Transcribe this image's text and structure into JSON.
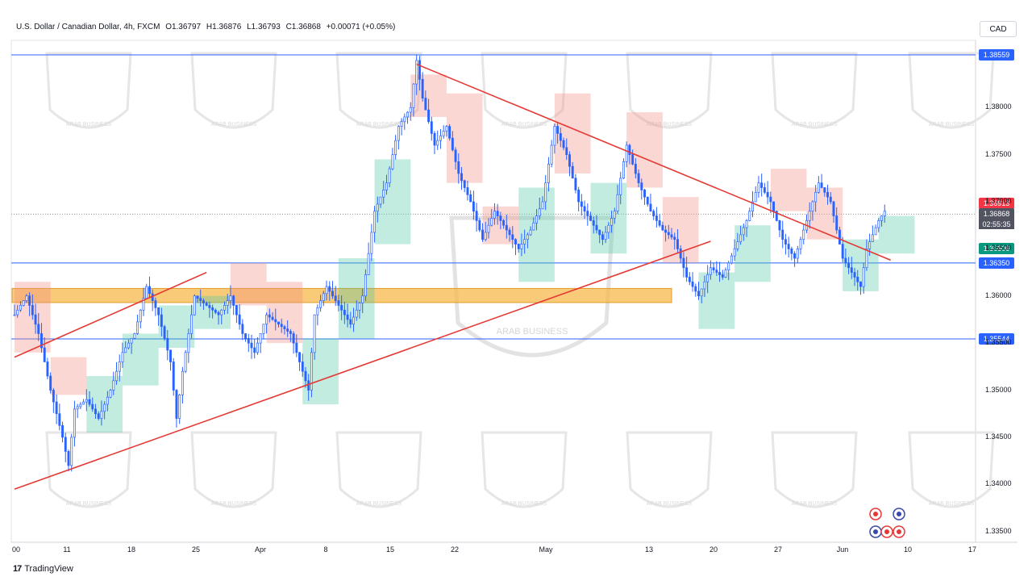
{
  "header": {
    "symbol": "U.S. Dollar / Canadian Dollar, 4h, FXCM",
    "open": "O1.36797",
    "high": "H1.36876",
    "low": "L1.36793",
    "close": "C1.36868",
    "change": "+0.00071 (+0.05%)"
  },
  "currency_button": "CAD",
  "brand": {
    "logo": "TradingView",
    "watermark": "ARAB BUSINESS"
  },
  "price_labels": {
    "resistance_top": "1.38559",
    "red_level": "1.36913",
    "current": "1.36868",
    "countdown": "02:55:35",
    "green_level": "1.36506",
    "support_mid": "1.36350",
    "support_low": "1.35544"
  },
  "colors": {
    "up": "#26a69a",
    "down": "#2962ff",
    "candle": "#2962ff",
    "trendline": "#e53935",
    "hline": "#2962ff",
    "zone": "#f7b84b",
    "cloud_red": "#f28b82",
    "cloud_green": "#4cc9a4"
  },
  "chart_data": {
    "type": "candlestick",
    "title": "U.S. Dollar / Canadian Dollar, 4h, FXCM",
    "xlabel": "",
    "ylabel": "",
    "y_ticks": [
      "1.38000",
      "1.37500",
      "1.37000",
      "1.36500",
      "1.36000",
      "1.35500",
      "1.35000",
      "1.34500",
      "1.34000",
      "1.33500"
    ],
    "x_ticks": [
      "00",
      "11",
      "18",
      "25",
      "Apr",
      "8",
      "15",
      "22",
      "May",
      "13",
      "20",
      "27",
      "Jun",
      "10",
      "17"
    ],
    "ylim": [
      1.3335,
      1.388
    ],
    "horizontal_levels": [
      1.38559,
      1.3635,
      1.35544
    ],
    "zone": {
      "from": 1.3593,
      "to": 1.3608
    },
    "price_path": [
      [
        0,
        1.358
      ],
      [
        2,
        1.36
      ],
      [
        4,
        1.356
      ],
      [
        6,
        1.35
      ],
      [
        8,
        1.345
      ],
      [
        9,
        1.342
      ],
      [
        10,
        1.348
      ],
      [
        12,
        1.349
      ],
      [
        14,
        1.347
      ],
      [
        16,
        1.35
      ],
      [
        18,
        1.354
      ],
      [
        20,
        1.356
      ],
      [
        22,
        1.361
      ],
      [
        24,
        1.358
      ],
      [
        26,
        1.353
      ],
      [
        27,
        1.347
      ],
      [
        28,
        1.352
      ],
      [
        30,
        1.36
      ],
      [
        32,
        1.359
      ],
      [
        34,
        1.358
      ],
      [
        36,
        1.36
      ],
      [
        38,
        1.356
      ],
      [
        40,
        1.354
      ],
      [
        42,
        1.358
      ],
      [
        44,
        1.357
      ],
      [
        46,
        1.356
      ],
      [
        48,
        1.352
      ],
      [
        49,
        1.35
      ],
      [
        50,
        1.358
      ],
      [
        52,
        1.361
      ],
      [
        54,
        1.359
      ],
      [
        56,
        1.357
      ],
      [
        58,
        1.36
      ],
      [
        60,
        1.369
      ],
      [
        62,
        1.372
      ],
      [
        64,
        1.378
      ],
      [
        66,
        1.38
      ],
      [
        67,
        1.385
      ],
      [
        68,
        1.381
      ],
      [
        70,
        1.376
      ],
      [
        72,
        1.378
      ],
      [
        74,
        1.373
      ],
      [
        76,
        1.37
      ],
      [
        78,
        1.366
      ],
      [
        80,
        1.369
      ],
      [
        82,
        1.367
      ],
      [
        84,
        1.365
      ],
      [
        86,
        1.367
      ],
      [
        88,
        1.37
      ],
      [
        90,
        1.378
      ],
      [
        92,
        1.375
      ],
      [
        94,
        1.37
      ],
      [
        96,
        1.368
      ],
      [
        98,
        1.366
      ],
      [
        100,
        1.369
      ],
      [
        102,
        1.376
      ],
      [
        104,
        1.372
      ],
      [
        106,
        1.369
      ],
      [
        108,
        1.367
      ],
      [
        110,
        1.366
      ],
      [
        112,
        1.362
      ],
      [
        114,
        1.36
      ],
      [
        116,
        1.363
      ],
      [
        118,
        1.362
      ],
      [
        120,
        1.365
      ],
      [
        122,
        1.368
      ],
      [
        124,
        1.372
      ],
      [
        126,
        1.37
      ],
      [
        128,
        1.366
      ],
      [
        130,
        1.364
      ],
      [
        132,
        1.368
      ],
      [
        134,
        1.372
      ],
      [
        136,
        1.37
      ],
      [
        138,
        1.364
      ],
      [
        140,
        1.362
      ],
      [
        141,
        1.361
      ],
      [
        142,
        1.365
      ],
      [
        144,
        1.368
      ],
      [
        145,
        1.369
      ]
    ],
    "trendlines": [
      {
        "name": "",
        "from": [
          0,
          1.3535
        ],
        "to": [
          32,
          1.3625
        ]
      },
      {
        "name": "",
        "from": [
          0,
          1.3395
        ],
        "to": [
          116,
          1.3658
        ]
      },
      {
        "name": "",
        "from": [
          67,
          1.3846
        ],
        "to": [
          146,
          1.3638
        ]
      }
    ]
  }
}
